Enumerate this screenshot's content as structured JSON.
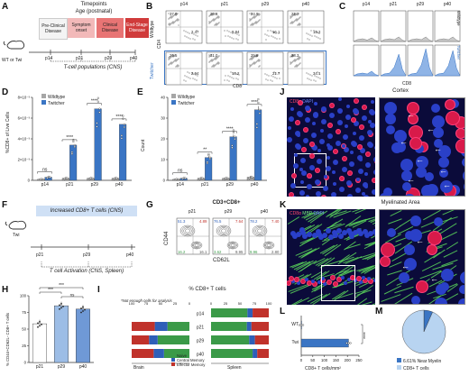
{
  "colors": {
    "wildtype": "#a6a6a6",
    "twitcher": "#3a75c4",
    "light_blue": "#b8d4f1",
    "naive": "#3b9a48",
    "central": "#2e5fb8",
    "effector": "#c0322b"
  },
  "panel_labels": [
    "A",
    "B",
    "C",
    "D",
    "E",
    "F",
    "G",
    "H",
    "I",
    "J",
    "K",
    "L",
    "M"
  ],
  "A": {
    "header": "Timepoints",
    "subheader": "Age (postnatal)",
    "mouse": "WT or Twi",
    "stages": [
      "Pre-Clinical Disease",
      "Symptom onset",
      "Clinical Disease",
      "End-Stage Disease"
    ],
    "ticks": [
      "p14",
      "p21",
      "p29",
      "p40"
    ],
    "bottom": "T-cell populations (CNS)"
  },
  "B": {
    "cols": [
      "p14",
      "p21",
      "p29",
      "p40"
    ],
    "rows": [
      "Wildtype",
      "Twitcher"
    ],
    "ylabel": "CD4",
    "xlabel": "CD8",
    "wt_tl": [
      "37.0",
      "20.8",
      "24.9",
      "22.2"
    ],
    "wt_br": [
      "2.47",
      "9.84",
      "16.1",
      "13.2"
    ],
    "tw_tl": [
      "26.5",
      "31.0",
      "25.8",
      "28.3"
    ],
    "tw_br": [
      "2.94",
      "16.2",
      "21.7",
      "34.1"
    ]
  },
  "C": {
    "cols": [
      "p14",
      "p21",
      "p29",
      "p40"
    ],
    "rows": [
      "Wildtype",
      "Twitcher"
    ],
    "xlabel": "CD8"
  },
  "D": {
    "ylabel": "%CD8+ of Live Cells",
    "yticks": [
      "0",
      "2×10⁻³",
      "4×10⁻³",
      "6×10⁻³",
      "8×10⁻³"
    ],
    "legend": [
      "Wildtype",
      "Twitcher"
    ],
    "sig": [
      "ns",
      "****",
      "****",
      "****"
    ]
  },
  "E": {
    "ylabel": "Count",
    "yticks": [
      "0",
      "10",
      "20",
      "30",
      "40"
    ],
    "legend": [
      "Wildtype",
      "Twitcher"
    ],
    "sig": [
      "ns",
      "**",
      "****",
      "****"
    ]
  },
  "F": {
    "mouse": "Twi",
    "banner": "Increased CD8+ T cells (CNS)",
    "ticks": [
      "p21",
      "p29",
      "p40"
    ],
    "bottom": "T cell Activation (CNS, Spleen)"
  },
  "G": {
    "title": "CD3+CD8+",
    "cols": [
      "p21",
      "p29",
      "p40"
    ],
    "ylabel": "CD44",
    "xlabel": "CD62L",
    "q": [
      [
        "51.3",
        "4.89",
        "16.2",
        "16.1"
      ],
      [
        "76.5",
        "7.64",
        "3.62",
        "9.95"
      ],
      [
        "78.2",
        "7.40",
        "9.96",
        "2.80"
      ]
    ]
  },
  "H": {
    "ylabel": "% CD44+CD62L- CD8+ T cells",
    "yticks": [
      "0",
      "25",
      "50",
      "75",
      "100"
    ],
    "sig": [
      "***",
      "***",
      "ns"
    ]
  },
  "I": {
    "title": "% CD8+ T cells",
    "note": "*Not enough cells for analysis",
    "rows": [
      "p14",
      "p21",
      "p29",
      "p40"
    ],
    "brain_label": "Brain",
    "spleen_label": "Spleen",
    "xticks": [
      "100",
      "75",
      "50",
      "25",
      "0",
      "25",
      "50",
      "75",
      "100"
    ],
    "legend": [
      "Naive",
      "Central Memory",
      "Effector Memory"
    ]
  },
  "J": {
    "title": "Cortex",
    "stain_a": "CD8α",
    "stain_b": "DAPI"
  },
  "K": {
    "title": "Myelinated Area",
    "stain_a": "CD8α",
    "stain_b": "MBP",
    "stain_c": "DAPI"
  },
  "L": {
    "rows": [
      "WT",
      "Twi"
    ],
    "xlabel": "CD8+ T cells/mm²",
    "xticks": [
      "0",
      "50",
      "100",
      "150",
      "200",
      "250"
    ],
    "sig": "****"
  },
  "chart_data": [
    {
      "type": "bar",
      "panel": "D",
      "categories": [
        "p14",
        "p21",
        "p29",
        "p40"
      ],
      "ylim": [
        0,
        0.008
      ],
      "series": [
        {
          "name": "Wildtype",
          "values": [
            0.0001,
            0.0002,
            0.0002,
            0.0002
          ]
        },
        {
          "name": "Twitcher",
          "values": [
            0.0003,
            0.0034,
            0.0069,
            0.0054
          ]
        }
      ]
    },
    {
      "type": "bar",
      "panel": "E",
      "categories": [
        "p14",
        "p21",
        "p29",
        "p40"
      ],
      "ylim": [
        0,
        40
      ],
      "series": [
        {
          "name": "Wildtype",
          "values": [
            0.5,
            1,
            1,
            1.5
          ]
        },
        {
          "name": "Twitcher",
          "values": [
            1,
            11,
            21,
            34
          ]
        }
      ]
    },
    {
      "type": "bar",
      "panel": "H",
      "categories": [
        "p21",
        "p29",
        "p40"
      ],
      "ylim": [
        0,
        100
      ],
      "series": [
        {
          "values": [
            58,
            85,
            80
          ]
        }
      ]
    },
    {
      "type": "bar",
      "panel": "L",
      "categories": [
        "WT",
        "Twi"
      ],
      "xlim": [
        0,
        250
      ],
      "series": [
        {
          "values": [
            0,
            205
          ]
        }
      ]
    },
    {
      "type": "bar",
      "panel": "I",
      "categories": [
        "p14",
        "p21",
        "p29",
        "p40"
      ],
      "series": [
        {
          "name": "Naive",
          "brain": [
            0,
            38,
            55,
            44
          ],
          "spleen": [
            63,
            62,
            66,
            72
          ]
        },
        {
          "name": "Central Memory",
          "brain": [
            0,
            22,
            15,
            18
          ],
          "spleen": [
            9,
            8,
            10,
            8
          ]
        },
        {
          "name": "Effector Memory",
          "brain": [
            0,
            40,
            30,
            38
          ],
          "spleen": [
            28,
            30,
            24,
            20
          ]
        }
      ]
    },
    {
      "type": "pie",
      "panel": "M",
      "categories": [
        "6.61% Near Myelin",
        "CD8+ T cells"
      ],
      "values": [
        6.61,
        93.39
      ]
    }
  ]
}
